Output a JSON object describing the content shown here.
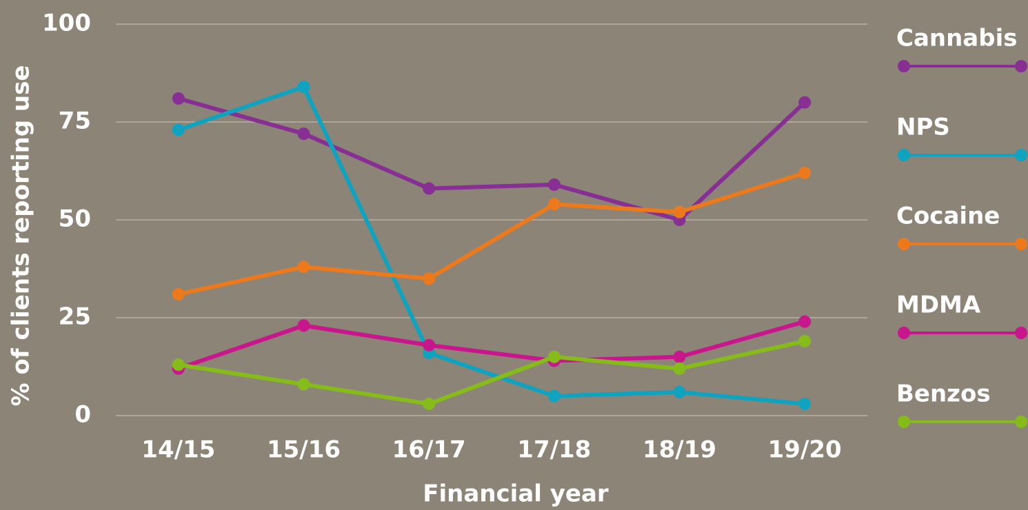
{
  "chart_data": {
    "type": "line",
    "x_label": "Financial year",
    "y_label": "% of clients reporting use",
    "categories": [
      "14/15",
      "15/16",
      "16/17",
      "17/18",
      "18/19",
      "19/20"
    ],
    "series": [
      {
        "name": "Cannabis",
        "color": "#872f92",
        "values": [
          81,
          72,
          58,
          59,
          50,
          80
        ]
      },
      {
        "name": "NPS",
        "color": "#0fa3c0",
        "values": [
          73,
          84,
          16,
          5,
          6,
          3
        ]
      },
      {
        "name": "Cocaine",
        "color": "#ec7a1c",
        "values": [
          31,
          38,
          35,
          54,
          52,
          62
        ]
      },
      {
        "name": "MDMA",
        "color": "#c8168c",
        "values": [
          12,
          23,
          18,
          14,
          15,
          24
        ]
      },
      {
        "name": "Benzos",
        "color": "#86bc1a",
        "values": [
          13,
          8,
          3,
          15,
          12,
          19
        ]
      }
    ],
    "ylim": [
      0,
      100
    ],
    "yticks": [
      0,
      25,
      50,
      75,
      100
    ],
    "grid": true,
    "legend": "right"
  }
}
